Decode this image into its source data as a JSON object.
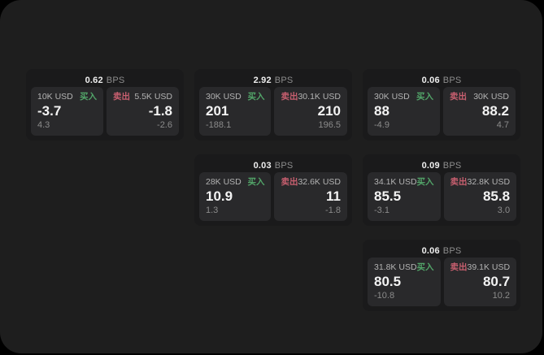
{
  "page": {
    "background": "#000000",
    "panel_background": "#1e1e1e",
    "card_background": "#1a1a1b",
    "tile_background": "#29292b"
  },
  "colors": {
    "buy_green": "#52a569",
    "sell_red": "#c75f6f",
    "primary_text": "#f3f3f3",
    "muted_text": "#8b8b8b"
  },
  "labels": {
    "bps": "BPS",
    "buy": "买入",
    "sell": "卖出"
  },
  "cards": [
    {
      "row": 1,
      "col": 1,
      "bps": "0.62",
      "buy": {
        "amount": "10K USD",
        "price": "-3.7",
        "delta": "4.3"
      },
      "sell": {
        "amount": "5.5K USD",
        "price": "-1.8",
        "delta": "-2.6"
      }
    },
    {
      "row": 1,
      "col": 2,
      "bps": "2.92",
      "buy": {
        "amount": "30K USD",
        "price": "201",
        "delta": "-188.1"
      },
      "sell": {
        "amount": "30.1K USD",
        "price": "210",
        "delta": "196.5"
      }
    },
    {
      "row": 1,
      "col": 3,
      "bps": "0.06",
      "buy": {
        "amount": "30K USD",
        "price": "88",
        "delta": "-4.9"
      },
      "sell": {
        "amount": "30K USD",
        "price": "88.2",
        "delta": "4.7"
      }
    },
    {
      "row": 2,
      "col": 2,
      "bps": "0.03",
      "buy": {
        "amount": "28K USD",
        "price": "10.9",
        "delta": "1.3"
      },
      "sell": {
        "amount": "32.6K USD",
        "price": "11",
        "delta": "-1.8"
      }
    },
    {
      "row": 2,
      "col": 3,
      "bps": "0.09",
      "buy": {
        "amount": "34.1K USD",
        "price": "85.5",
        "delta": "-3.1"
      },
      "sell": {
        "amount": "32.8K USD",
        "price": "85.8",
        "delta": "3.0"
      }
    },
    {
      "row": 3,
      "col": 3,
      "bps": "0.06",
      "buy": {
        "amount": "31.8K USD",
        "price": "80.5",
        "delta": "-10.8"
      },
      "sell": {
        "amount": "39.1K USD",
        "price": "80.7",
        "delta": "10.2"
      }
    }
  ]
}
